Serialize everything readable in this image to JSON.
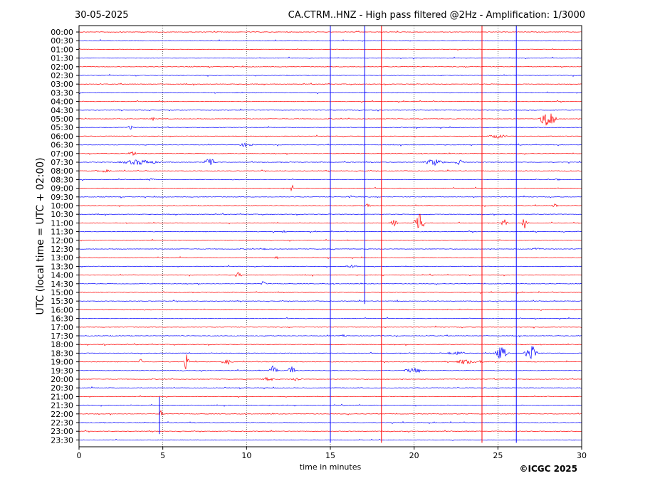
{
  "header": {
    "date": "30-05-2025",
    "title": "CA.CTRM..HNZ - High pass filtered @2Hz - Amplification: 1/3000"
  },
  "footer": {
    "copyright": "©ICGC 2025"
  },
  "chart_data": {
    "type": "line",
    "title": "CA.CTRM..HNZ - High pass filtered @2Hz - Amplification: 1/3000",
    "subtitle": "30-05-2025",
    "xlabel": "time in minutes",
    "ylabel": "UTC (local time = UTC + 02:00)",
    "xlim": [
      0,
      30
    ],
    "x_ticks": [
      0,
      5,
      10,
      15,
      20,
      25,
      30
    ],
    "grid": "vertical dotted lines at 5-minute intervals",
    "trace_colors": [
      "#ff0000",
      "#0000ff"
    ],
    "row_labels": [
      "00:00",
      "00:30",
      "01:00",
      "01:30",
      "02:00",
      "02:30",
      "03:00",
      "03:30",
      "04:00",
      "04:30",
      "05:00",
      "05:30",
      "06:00",
      "06:30",
      "07:00",
      "07:30",
      "08:00",
      "08:30",
      "09:00",
      "09:30",
      "10:00",
      "10:30",
      "11:00",
      "11:30",
      "12:00",
      "12:30",
      "13:00",
      "13:30",
      "14:00",
      "14:30",
      "15:00",
      "15:30",
      "16:00",
      "16:30",
      "17:00",
      "17:30",
      "18:00",
      "18:30",
      "19:00",
      "19:30",
      "20:00",
      "20:30",
      "21:00",
      "21:30",
      "22:00",
      "22:30",
      "23:00",
      "23:30"
    ],
    "vertical_spikes": [
      {
        "minute": 15.0,
        "from_row": 0,
        "to_row": 47,
        "color": "#0000ff"
      },
      {
        "minute": 17.05,
        "from_row": 0,
        "to_row": 31,
        "color": "#0000ff"
      },
      {
        "minute": 18.05,
        "from_row": 0,
        "to_row": 47,
        "color": "#ff0000"
      },
      {
        "minute": 24.05,
        "from_row": 0,
        "to_row": 47,
        "color": "#ff0000"
      },
      {
        "minute": 26.1,
        "from_row": 0,
        "to_row": 47,
        "color": "#0000ff"
      },
      {
        "minute": 4.8,
        "from_row": 43,
        "to_row": 46,
        "color": "#0000ff"
      }
    ],
    "events": [
      {
        "row": 10,
        "minute": 28.0,
        "width": 1.2,
        "amp": 14
      },
      {
        "row": 10,
        "minute": 4.4,
        "width": 0.3,
        "amp": 3
      },
      {
        "row": 11,
        "minute": 3.1,
        "width": 0.6,
        "amp": 3
      },
      {
        "row": 12,
        "minute": 25.0,
        "width": 1.5,
        "amp": 3
      },
      {
        "row": 13,
        "minute": 10.0,
        "width": 1.2,
        "amp": 3
      },
      {
        "row": 14,
        "minute": 3.2,
        "width": 0.8,
        "amp": 3
      },
      {
        "row": 15,
        "minute": 3.6,
        "width": 3.0,
        "amp": 4
      },
      {
        "row": 15,
        "minute": 7.8,
        "width": 0.8,
        "amp": 9
      },
      {
        "row": 15,
        "minute": 21.2,
        "width": 1.6,
        "amp": 5
      },
      {
        "row": 15,
        "minute": 22.7,
        "width": 0.8,
        "amp": 4
      },
      {
        "row": 16,
        "minute": 1.5,
        "width": 1.5,
        "amp": 2
      },
      {
        "row": 17,
        "minute": 4.3,
        "width": 0.8,
        "amp": 2
      },
      {
        "row": 17,
        "minute": 28.6,
        "width": 0.8,
        "amp": 2
      },
      {
        "row": 18,
        "minute": 12.7,
        "width": 0.2,
        "amp": 8
      },
      {
        "row": 19,
        "minute": 16.2,
        "width": 0.8,
        "amp": 2
      },
      {
        "row": 20,
        "minute": 17.2,
        "width": 0.6,
        "amp": 3
      },
      {
        "row": 20,
        "minute": 28.4,
        "width": 0.5,
        "amp": 3
      },
      {
        "row": 22,
        "minute": 20.3,
        "width": 0.8,
        "amp": 18
      },
      {
        "row": 22,
        "minute": 18.8,
        "width": 0.6,
        "amp": 5
      },
      {
        "row": 22,
        "minute": 25.4,
        "width": 0.6,
        "amp": 5
      },
      {
        "row": 22,
        "minute": 26.6,
        "width": 0.4,
        "amp": 10
      },
      {
        "row": 23,
        "minute": 12.2,
        "width": 0.5,
        "amp": 2
      },
      {
        "row": 25,
        "minute": 11.1,
        "width": 0.3,
        "amp": 3
      },
      {
        "row": 25,
        "minute": 27.3,
        "width": 0.8,
        "amp": 2
      },
      {
        "row": 26,
        "minute": 11.8,
        "width": 0.6,
        "amp": 2
      },
      {
        "row": 27,
        "minute": 16.3,
        "width": 1.4,
        "amp": 2
      },
      {
        "row": 28,
        "minute": 9.5,
        "width": 0.6,
        "amp": 4
      },
      {
        "row": 29,
        "minute": 11.0,
        "width": 0.4,
        "amp": 4
      },
      {
        "row": 31,
        "minute": 19.0,
        "width": 0.3,
        "amp": 2
      },
      {
        "row": 35,
        "minute": 15.8,
        "width": 0.5,
        "amp": 2
      },
      {
        "row": 36,
        "minute": 1.5,
        "width": 0.4,
        "amp": 2
      },
      {
        "row": 37,
        "minute": 25.2,
        "width": 1.0,
        "amp": 10
      },
      {
        "row": 37,
        "minute": 27.0,
        "width": 1.0,
        "amp": 12
      },
      {
        "row": 37,
        "minute": 22.5,
        "width": 1.5,
        "amp": 3
      },
      {
        "row": 38,
        "minute": 6.4,
        "width": 0.4,
        "amp": 12
      },
      {
        "row": 38,
        "minute": 3.7,
        "width": 0.3,
        "amp": 6
      },
      {
        "row": 38,
        "minute": 8.9,
        "width": 0.7,
        "amp": 4
      },
      {
        "row": 38,
        "minute": 23.0,
        "width": 1.5,
        "amp": 4
      },
      {
        "row": 38,
        "minute": 24.0,
        "width": 0.3,
        "amp": 6
      },
      {
        "row": 39,
        "minute": 11.6,
        "width": 0.6,
        "amp": 8
      },
      {
        "row": 39,
        "minute": 12.7,
        "width": 0.6,
        "amp": 7
      },
      {
        "row": 39,
        "minute": 20.0,
        "width": 1.6,
        "amp": 4
      },
      {
        "row": 40,
        "minute": 11.3,
        "width": 0.8,
        "amp": 4
      },
      {
        "row": 40,
        "minute": 13.0,
        "width": 1.0,
        "amp": 3
      },
      {
        "row": 44,
        "minute": 4.9,
        "width": 0.4,
        "amp": 5
      }
    ]
  }
}
